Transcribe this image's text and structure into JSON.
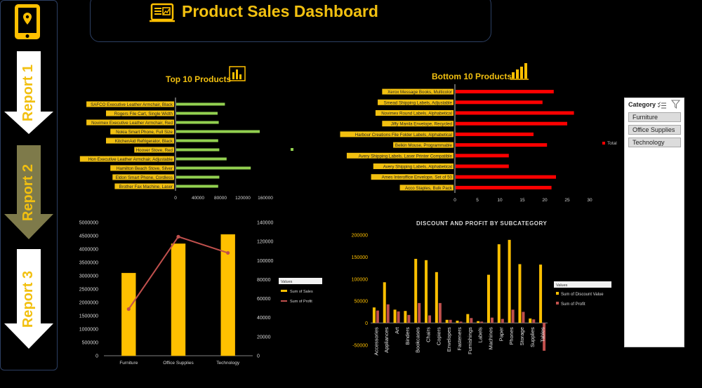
{
  "header": {
    "title": "Product Sales Dashboard"
  },
  "nav": {
    "items": [
      {
        "label": "Report 1",
        "color": "#ffffff"
      },
      {
        "label": "Report 2",
        "color": "#7e7a4a"
      },
      {
        "label": "Report 3",
        "color": "#ffffff"
      }
    ]
  },
  "slicer": {
    "title": "Category",
    "items": [
      "Furniture",
      "Office Supplies",
      "Technology"
    ]
  },
  "charts": {
    "top10": {
      "title": "Top 10 Products",
      "type": "bar",
      "color": "#92d050",
      "legend": "Total",
      "categories": [
        "SAFCO Executive Leather Armchair, Black",
        "Rogers File Cart, Single Width",
        "Novimex Executive Leather Armchair, Red",
        "Nokia Smart Phone, Full Size",
        "KitchenAid Refrigerator, Black",
        "Hoover Stove, Red",
        "Hon Executive Leather Armchair, Adjustable",
        "Hamilton Beach Stove, Silver",
        "Eldon Smart Phone, Cordless",
        "Brother Fax Machine, Laser"
      ],
      "values": [
        88000,
        75000,
        77000,
        150000,
        76000,
        78000,
        91000,
        134000,
        78000,
        76000
      ],
      "ticks": [
        "0",
        "40000",
        "80000",
        "120000",
        "160000"
      ],
      "xlim": [
        0,
        160000
      ]
    },
    "bottom10": {
      "title": "Bottom 10 Products",
      "type": "bar",
      "color": "#ff0000",
      "legend": "Total",
      "categories": [
        "Xerox Message Books, Multicolor",
        "Smead Shipping Labels, Adjustable",
        "Novimex Round Labels, Alphabetical",
        "Jiffy Manila Envelope, Recycled",
        "Harbour Creations File Folder Labels, Alphabetical",
        "Belkin Mouse, Programmable",
        "Avery Shipping Labels, Laser Printer Compatible",
        "Avery Shipping Labels, Alphabetical",
        "Ames Interoffice Envelope, Set of 50",
        "Acco Staples, Bulk Pack"
      ],
      "values": [
        22,
        19.5,
        26.5,
        25,
        17.5,
        20.5,
        12,
        12,
        22.5,
        21.5
      ],
      "ticks": [
        "0",
        "5",
        "10",
        "15",
        "20",
        "25",
        "30"
      ],
      "xlim": [
        0,
        30
      ]
    },
    "category": {
      "type": "bar+line",
      "categories": [
        "Furniture",
        "Office Supplies",
        "Technology"
      ],
      "sales": [
        3100000,
        4200000,
        4550000
      ],
      "profit": [
        49000,
        125000,
        108000
      ],
      "left_ticks": [
        "0",
        "500000",
        "1000000",
        "1500000",
        "2000000",
        "2500000",
        "3000000",
        "3500000",
        "4000000",
        "4500000",
        "5000000"
      ],
      "right_ticks": [
        "0",
        "20000",
        "40000",
        "60000",
        "80000",
        "100000",
        "120000",
        "140000"
      ],
      "ylim_left": [
        0,
        5000000
      ],
      "ylim_right": [
        0,
        140000
      ],
      "legend_title": "Values",
      "legend": [
        "Sum of Sales",
        "Sum of Profit"
      ],
      "bar_color": "#ffc000",
      "line_color": "#c0504d"
    },
    "subcategory": {
      "title": "DISCOUNT AND PROFIT BY SUBCATEGORY",
      "type": "bar",
      "categories": [
        "Accessories",
        "Appliances",
        "Art",
        "Binders",
        "Bookcases",
        "Chairs",
        "Copiers",
        "Envelopes",
        "Fasteners",
        "Furnishings",
        "Labels",
        "Machines",
        "Paper",
        "Phones",
        "Storage",
        "Supplies",
        "Tables"
      ],
      "discount": [
        35000,
        92000,
        30000,
        27000,
        145000,
        142000,
        115000,
        7000,
        5000,
        20000,
        4000,
        109000,
        178000,
        188000,
        133000,
        10000,
        132000
      ],
      "profit": [
        28000,
        42000,
        26000,
        18000,
        45000,
        17000,
        45000,
        7000,
        3000,
        11000,
        3000,
        12000,
        9000,
        30000,
        25000,
        8000,
        -63000
      ],
      "ticks": [
        "-50000",
        "0",
        "50000",
        "100000",
        "150000",
        "200000"
      ],
      "ylim": [
        -60000,
        210000
      ],
      "legend_title": "Values",
      "legend": [
        "Sum of Discount Value",
        "Sum of Profit"
      ],
      "discount_color": "#ffc000",
      "profit_color": "#c0504d"
    }
  }
}
